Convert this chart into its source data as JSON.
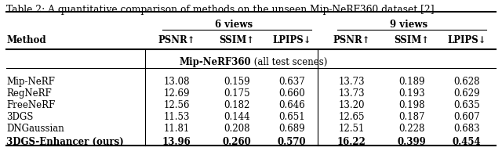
{
  "title": "Table 2: A quantitative comparison of methods on the unseen Mip-NeRF360 dataset [2].",
  "section_label_bold": "Mip-NeRF360",
  "section_label_normal": " (all test scenes)",
  "col_headers_top": [
    "6 views",
    "9 views"
  ],
  "col_headers_bot": [
    "Method",
    "PSNR↑",
    "SSIM↑",
    "LPIPS↓",
    "PSNR↑",
    "SSIM↑",
    "LPIPS↓"
  ],
  "rows": [
    [
      "Mip-NeRF",
      "13.08",
      "0.159",
      "0.637",
      "13.73",
      "0.189",
      "0.628"
    ],
    [
      "RegNeRF",
      "12.69",
      "0.175",
      "0.660",
      "13.73",
      "0.193",
      "0.629"
    ],
    [
      "FreeNeRF",
      "12.56",
      "0.182",
      "0.646",
      "13.20",
      "0.198",
      "0.635"
    ],
    [
      "3DGS",
      "11.53",
      "0.144",
      "0.651",
      "12.65",
      "0.187",
      "0.607"
    ],
    [
      "DNGaussian",
      "11.81",
      "0.208",
      "0.689",
      "12.51",
      "0.228",
      "0.683"
    ],
    [
      "3DGS-Enhancer (ours)",
      "13.96",
      "0.260",
      "0.570",
      "16.22",
      "0.399",
      "0.454"
    ]
  ],
  "bold_row_index": 5,
  "background_color": "#ffffff",
  "text_color": "#000000",
  "font_size": 8.5,
  "title_font_size": 8.8
}
